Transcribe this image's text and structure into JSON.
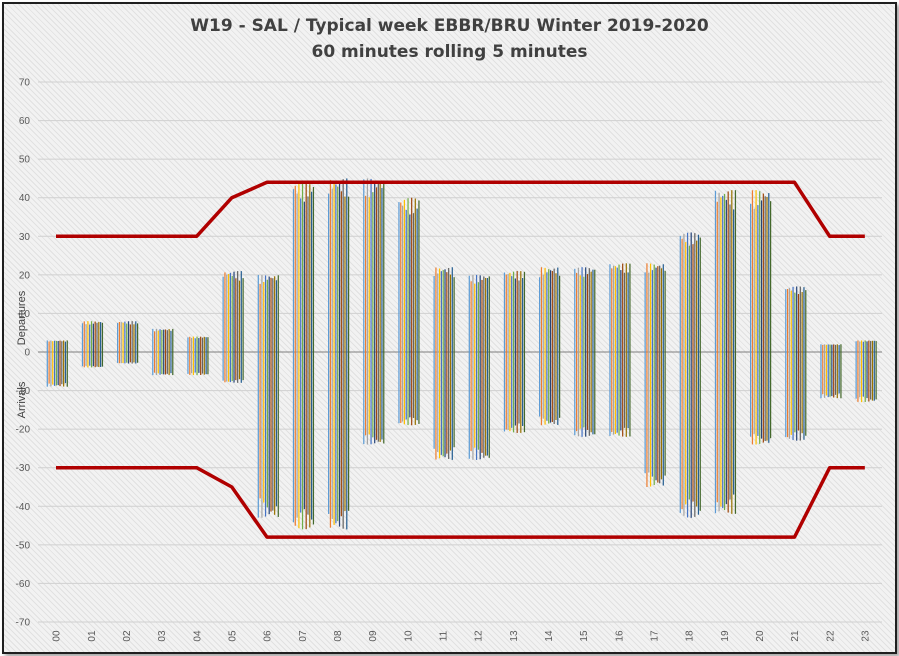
{
  "chart_data": {
    "type": "bar",
    "title": "W19 - SAL / Typical week EBBR/BRU Winter 2019-2020",
    "subtitle": "60 minutes rolling 5 minutes",
    "ylabel_positive": "Departures",
    "ylabel_negative": "Arrivals",
    "ylim": [
      -70,
      70
    ],
    "yticks": [
      70,
      60,
      50,
      40,
      30,
      20,
      10,
      0,
      -10,
      -20,
      -30,
      -40,
      -50,
      -60,
      -70
    ],
    "categories": [
      "00",
      "01",
      "02",
      "03",
      "04",
      "05",
      "06",
      "07",
      "08",
      "09",
      "10",
      "11",
      "12",
      "13",
      "14",
      "15",
      "16",
      "17",
      "18",
      "19",
      "20",
      "21",
      "22",
      "23"
    ],
    "departures": [
      3,
      8,
      8,
      6,
      4,
      21,
      20,
      44,
      45,
      45,
      40,
      22,
      20,
      21,
      22,
      22,
      23,
      23,
      31,
      42,
      42,
      17,
      2,
      3
    ],
    "arrivals": [
      -9,
      -4,
      -3,
      -6,
      -6,
      -8,
      -43,
      -46,
      -46,
      -24,
      -19,
      -28,
      -28,
      -21,
      -19,
      -22,
      -22,
      -35,
      -43,
      -42,
      -24,
      -23,
      -12,
      -13
    ],
    "capacity_upper": {
      "x": [
        0,
        4,
        5,
        6,
        21,
        22,
        23
      ],
      "y": [
        30,
        30,
        40,
        44,
        44,
        30,
        30
      ]
    },
    "capacity_lower": {
      "x": [
        0,
        4,
        5,
        6,
        21,
        22,
        23
      ],
      "y": [
        -30,
        -30,
        -35,
        -48,
        -48,
        -30,
        -30
      ]
    },
    "colors": {
      "series": [
        "#5b9bd5",
        "#ed7d31",
        "#a5a5a5",
        "#ffc000",
        "#4472c4",
        "#70ad47",
        "#264478",
        "#9e480e",
        "#636363",
        "#997300",
        "#255e91",
        "#43682b"
      ],
      "capacity": "#b00000"
    },
    "grid": true
  }
}
